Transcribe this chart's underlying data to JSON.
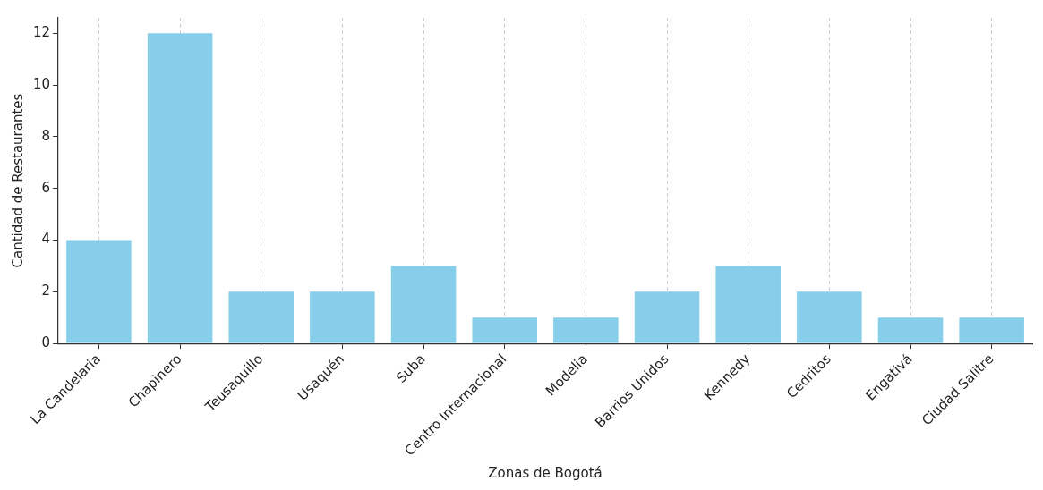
{
  "chart_data": {
    "type": "bar",
    "xlabel": "Zonas de Bogotá",
    "ylabel": "Cantidad de Restaurantes",
    "categories": [
      "La Candelaria",
      "Chapinero",
      "Teusaquillo",
      "Usaquén",
      "Suba",
      "Centro Internacional",
      "Modelia",
      "Barrios Unidos",
      "Kennedy",
      "Cedritos",
      "Engativá",
      "Ciudad Salitre"
    ],
    "values": [
      4,
      12,
      2,
      2,
      3,
      1,
      1,
      2,
      3,
      2,
      1,
      1
    ],
    "color": "#87ceeb",
    "ylim": [
      0,
      12.6
    ],
    "yticks": [
      0,
      2,
      4,
      6,
      8,
      10,
      12
    ],
    "grid": "x",
    "legend": false
  }
}
